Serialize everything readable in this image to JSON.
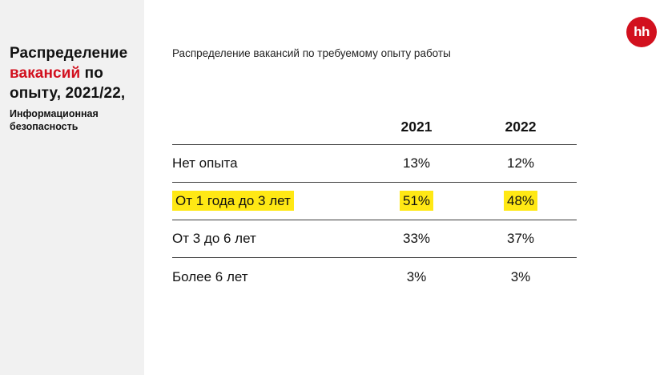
{
  "sidebar": {
    "title_part1": "Распределение",
    "title_red": "вакансий",
    "title_part2": "по опыту, 2021/22,",
    "subtitle": "Информационная безопасность"
  },
  "logo": {
    "text": "hh"
  },
  "main": {
    "subtitle": "Распределение вакансий по требуемому опыту работы"
  },
  "table": {
    "columns": [
      "2021",
      "2022"
    ],
    "rows": [
      {
        "label": "Нет опыта",
        "v2021": "13%",
        "v2022": "12%"
      },
      {
        "label": "От 1 года до 3 лет",
        "v2021": "51%",
        "v2022": "48%"
      },
      {
        "label": "От 3 до 6 лет",
        "v2021": "33%",
        "v2022": "37%"
      },
      {
        "label": "Более 6 лет",
        "v2021": "3%",
        "v2022": "3%"
      }
    ]
  },
  "chart_data": {
    "type": "table",
    "title": "Распределение вакансий по требуемому опыту работы",
    "categories": [
      "Нет опыта",
      "От 1 года до 3 лет",
      "От 3 до 6 лет",
      "Более 6 лет"
    ],
    "series": [
      {
        "name": "2021",
        "values": [
          13,
          51,
          33,
          3
        ]
      },
      {
        "name": "2022",
        "values": [
          12,
          48,
          37,
          3
        ]
      }
    ],
    "unit": "%",
    "highlighted_category": "От 1 года до 3 лет",
    "legend_position": "column-headers"
  },
  "colors": {
    "accent_red": "#d2101e",
    "highlight_yellow": "#ffe814",
    "sidebar_bg": "#f1f1f1",
    "text": "#121212",
    "rule": "#3c3c3c"
  }
}
